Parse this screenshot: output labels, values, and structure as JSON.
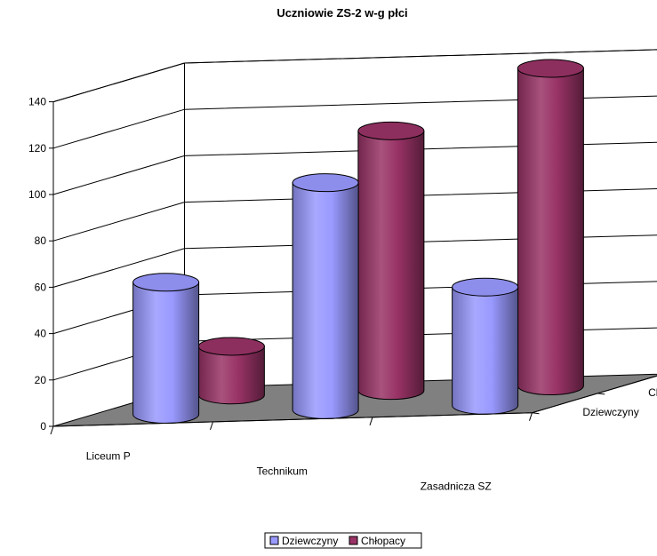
{
  "chart_data": {
    "type": "bar",
    "variant": "3d-cylinder",
    "title": "Uczniowie ZS-2 w-g płci",
    "categories": [
      "Liceum P",
      "Technikum",
      "Zasadnicza SZ"
    ],
    "series": [
      {
        "name": "Dziewczyny",
        "values": [
          57,
          98,
          51
        ],
        "color": "#9999ff"
      },
      {
        "name": "Chłopacy",
        "values": [
          21,
          112,
          137
        ],
        "color": "#993366"
      }
    ],
    "y_ticks": [
      0,
      20,
      40,
      60,
      80,
      100,
      120,
      140
    ],
    "ylim": [
      0,
      140
    ],
    "depth_labels": [
      "Chłopacy",
      "Dziewczyny"
    ],
    "grid": true,
    "legend_position": "bottom",
    "floor_color": "#808080"
  }
}
